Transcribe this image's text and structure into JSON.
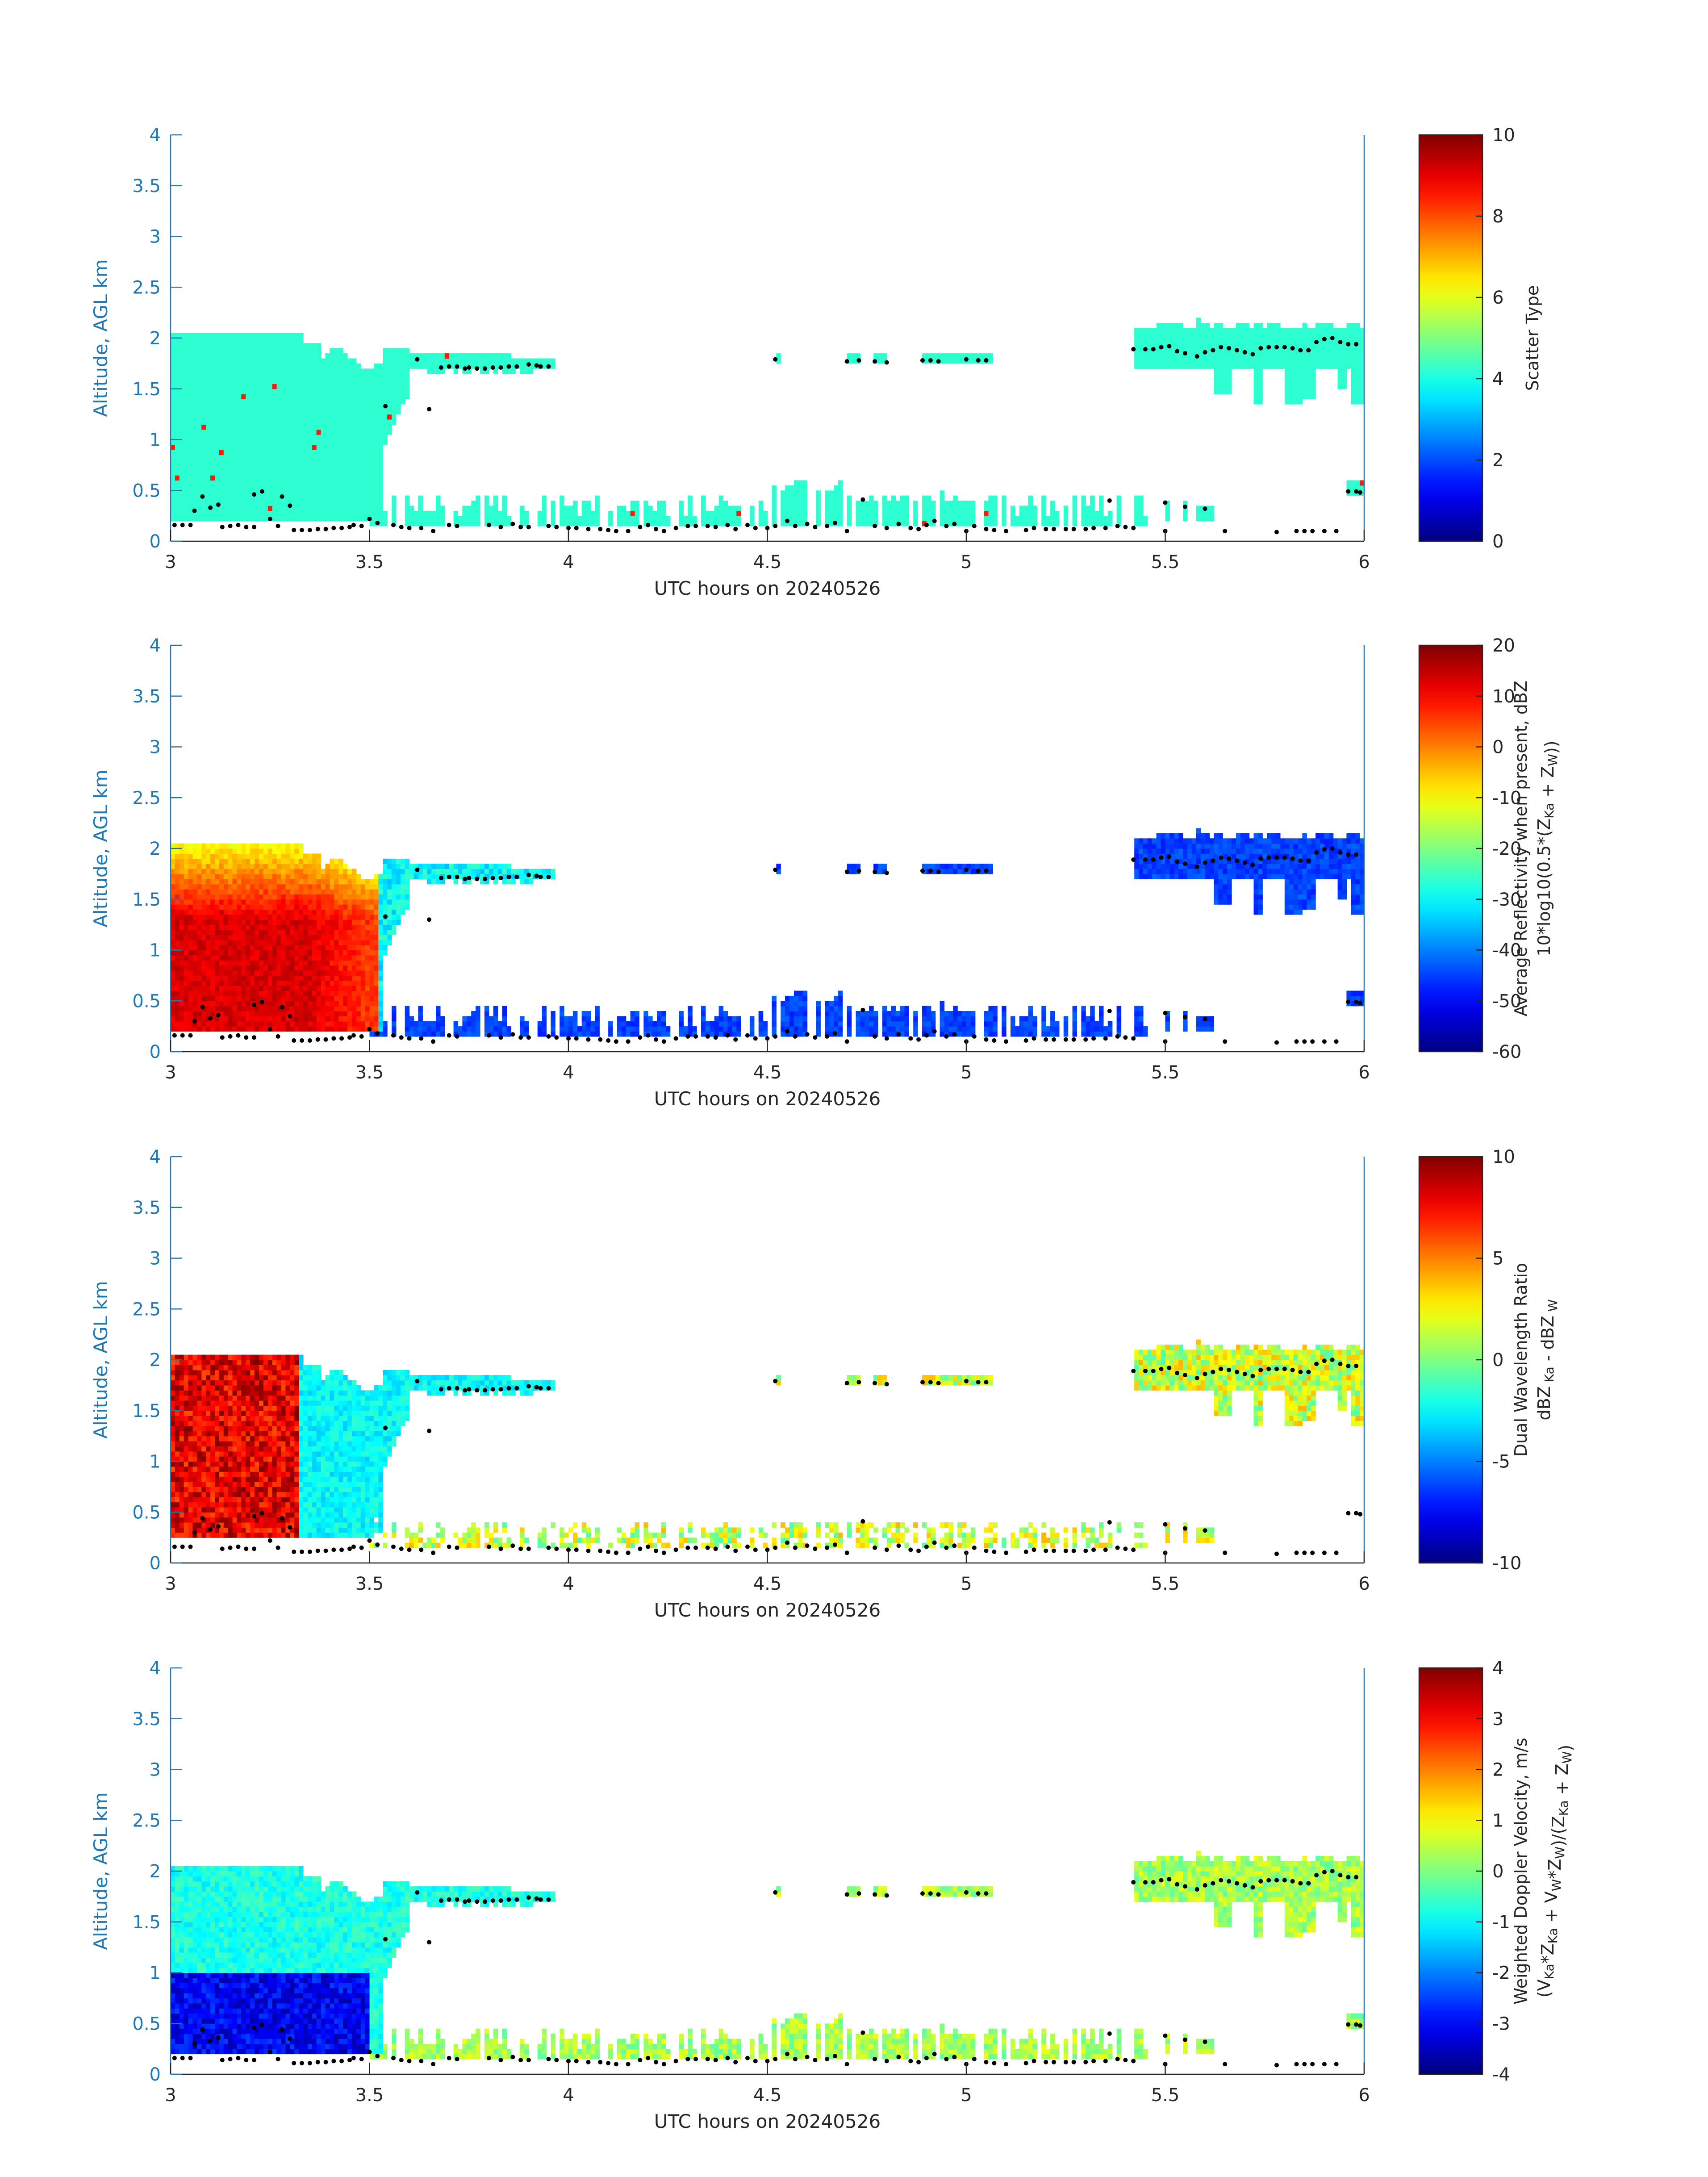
{
  "figure": {
    "colormap": "jet",
    "axis_color": "#1f77b4",
    "text_color": "#262626"
  },
  "chart_data": [
    {
      "type": "heatmap",
      "id": "scatter-type",
      "xlabel": "UTC hours on 20240526",
      "ylabel": "Altitude, AGL km",
      "xlim": [
        3,
        6
      ],
      "ylim": [
        0,
        4
      ],
      "xticks": [
        3,
        3.5,
        4,
        4.5,
        5,
        5.5,
        6
      ],
      "xticklabels": [
        "3",
        "3.5",
        "4",
        "4.5",
        "5",
        "5.5",
        "6"
      ],
      "yticks": [
        0,
        0.5,
        1,
        1.5,
        2,
        2.5,
        3,
        3.5,
        4
      ],
      "yticklabels": [
        "0",
        "0.5",
        "1",
        "1.5",
        "2",
        "2.5",
        "3",
        "3.5",
        "4"
      ],
      "colorbar": {
        "label_lines": [
          [
            {
              "t": "Scatter Type"
            }
          ]
        ],
        "clim": [
          0,
          10
        ],
        "ticks": [
          0,
          2,
          4,
          6,
          8,
          10
        ],
        "ticklabels": [
          "0",
          "2",
          "4",
          "6",
          "8",
          "10"
        ]
      },
      "field": "type",
      "field_note": "Mostly value ~4.2 (cyan) wherever echo is present; a few isolated cells ~8.5 (orange-red)."
    },
    {
      "type": "heatmap",
      "id": "reflectivity",
      "xlabel": "UTC hours on 20240526",
      "ylabel": "Altitude, AGL km",
      "xlim": [
        3,
        6
      ],
      "ylim": [
        0,
        4
      ],
      "xticks": [
        3,
        3.5,
        4,
        4.5,
        5,
        5.5,
        6
      ],
      "xticklabels": [
        "3",
        "3.5",
        "4",
        "4.5",
        "5",
        "5.5",
        "6"
      ],
      "yticks": [
        0,
        0.5,
        1,
        1.5,
        2,
        2.5,
        3,
        3.5,
        4
      ],
      "yticklabels": [
        "0",
        "0.5",
        "1",
        "1.5",
        "2",
        "2.5",
        "3",
        "3.5",
        "4"
      ],
      "colorbar": {
        "label_lines": [
          [
            {
              "t": "Average Reflectivity when present, dBZ"
            }
          ],
          [
            {
              "t": "10*log10(0.5*(Z"
            },
            {
              "t": "Ka",
              "sub": true
            },
            {
              "t": " + Z"
            },
            {
              "t": "W",
              "sub": true
            },
            {
              "t": "))"
            }
          ]
        ],
        "clim": [
          -60,
          20
        ],
        "ticks": [
          -60,
          -50,
          -40,
          -30,
          -20,
          -10,
          0,
          10,
          20
        ],
        "ticklabels": [
          "-60",
          "-50",
          "-40",
          "-30",
          "-20",
          "-10",
          "0",
          "10",
          "20"
        ]
      },
      "field": "refl",
      "field_note": "Strong echo (~5 to 15 dBZ) in 3.0-3.5 h below 2 km, weakening to ~-45 dBZ at edges; weak (~-50 dBZ) layers near surface and near 1.8 km after 5.4 h."
    },
    {
      "type": "heatmap",
      "id": "dwr",
      "xlabel": "UTC hours on 20240526",
      "ylabel": "Altitude, AGL km",
      "xlim": [
        3,
        6
      ],
      "ylim": [
        0,
        4
      ],
      "xticks": [
        3,
        3.5,
        4,
        4.5,
        5,
        5.5,
        6
      ],
      "xticklabels": [
        "3",
        "3.5",
        "4",
        "4.5",
        "5",
        "5.5",
        "6"
      ],
      "yticks": [
        0,
        0.5,
        1,
        1.5,
        2,
        2.5,
        3,
        3.5,
        4
      ],
      "yticklabels": [
        "0",
        "0.5",
        "1",
        "1.5",
        "2",
        "2.5",
        "3",
        "3.5",
        "4"
      ],
      "colorbar": {
        "label_lines": [
          [
            {
              "t": "Dual Wavelength Ratio"
            }
          ],
          [
            {
              "t": "dBZ"
            },
            {
              "t": " Ka",
              "sub": true
            },
            {
              "t": " - dBZ"
            },
            {
              "t": " W",
              "sub": true
            }
          ]
        ],
        "clim": [
          -10,
          10
        ],
        "ticks": [
          -10,
          -5,
          0,
          5,
          10
        ],
        "ticklabels": [
          "-10",
          "-5",
          "0",
          "5",
          "10"
        ]
      },
      "field": "dwr",
      "field_note": "Large DWR (~6 to 10) for 3.0-3.3 h, about -3 to -4 for 3.3-3.55 h, scattered ~0 to +3 cells in near-surface layer and upper layer."
    },
    {
      "type": "heatmap",
      "id": "doppler",
      "xlabel": "UTC hours on 20240526",
      "ylabel": "Altitude, AGL km",
      "xlim": [
        3,
        6
      ],
      "ylim": [
        0,
        4
      ],
      "xticks": [
        3,
        3.5,
        4,
        4.5,
        5,
        5.5,
        6
      ],
      "xticklabels": [
        "3",
        "3.5",
        "4",
        "4.5",
        "5",
        "5.5",
        "6"
      ],
      "yticks": [
        0,
        0.5,
        1,
        1.5,
        2,
        2.5,
        3,
        3.5,
        4
      ],
      "yticklabels": [
        "0",
        "0.5",
        "1",
        "1.5",
        "2",
        "2.5",
        "3",
        "3.5",
        "4"
      ],
      "colorbar": {
        "label_lines": [
          [
            {
              "t": "Weighted Doppler Velocity, m/s"
            }
          ],
          [
            {
              "t": "(V"
            },
            {
              "t": "Ka",
              "sub": true
            },
            {
              "t": "*Z"
            },
            {
              "t": "Ka",
              "sub": true
            },
            {
              "t": " + V"
            },
            {
              "t": "W",
              "sub": true
            },
            {
              "t": "*Z"
            },
            {
              "t": "W",
              "sub": true
            },
            {
              "t": ")/(Z"
            },
            {
              "t": "Ka",
              "sub": true
            },
            {
              "t": " + Z"
            },
            {
              "t": "W",
              "sub": true
            },
            {
              "t": ")"
            }
          ]
        ],
        "clim": [
          -4,
          4
        ],
        "ticks": [
          -4,
          -3,
          -2,
          -1,
          0,
          1,
          2,
          3,
          4
        ],
        "ticklabels": [
          "-4",
          "-3",
          "-2",
          "-1",
          "0",
          "1",
          "2",
          "3",
          "4"
        ]
      },
      "field": "vel",
      "field_note": "Downward ~-2 to -3.5 m/s below 1 km in 3.0-3.4 h, ~-1 m/s aloft; near-zero to slightly positive in near-surface layer and upper layer after 5.4 h."
    }
  ],
  "cloud_base_markers": {
    "note": "Black dots marking detected cloud base heights (km) vs UTC hour, identical in all panels.",
    "points": [
      [
        3.01,
        0.16
      ],
      [
        3.03,
        0.16
      ],
      [
        3.05,
        0.16
      ],
      [
        3.06,
        0.3
      ],
      [
        3.08,
        0.44
      ],
      [
        3.1,
        0.33
      ],
      [
        3.12,
        0.36
      ],
      [
        3.13,
        0.14
      ],
      [
        3.15,
        0.15
      ],
      [
        3.17,
        0.16
      ],
      [
        3.19,
        0.14
      ],
      [
        3.21,
        0.14
      ],
      [
        3.21,
        0.46
      ],
      [
        3.23,
        0.49
      ],
      [
        3.25,
        0.22
      ],
      [
        3.27,
        0.15
      ],
      [
        3.28,
        0.44
      ],
      [
        3.3,
        0.35
      ],
      [
        3.31,
        0.11
      ],
      [
        3.33,
        0.11
      ],
      [
        3.35,
        0.11
      ],
      [
        3.37,
        0.12
      ],
      [
        3.39,
        0.12
      ],
      [
        3.41,
        0.13
      ],
      [
        3.43,
        0.13
      ],
      [
        3.45,
        0.14
      ],
      [
        3.46,
        0.16
      ],
      [
        3.48,
        0.15
      ],
      [
        3.5,
        0.22
      ],
      [
        3.52,
        0.18
      ],
      [
        3.54,
        1.33
      ],
      [
        3.56,
        0.16
      ],
      [
        3.58,
        0.14
      ],
      [
        3.6,
        0.13
      ],
      [
        3.62,
        1.79
      ],
      [
        3.63,
        0.13
      ],
      [
        3.65,
        1.3
      ],
      [
        3.66,
        0.1
      ],
      [
        3.68,
        1.71
      ],
      [
        3.7,
        1.72
      ],
      [
        3.72,
        1.72
      ],
      [
        3.74,
        1.7
      ],
      [
        3.75,
        1.71
      ],
      [
        3.77,
        1.7
      ],
      [
        3.79,
        1.7
      ],
      [
        3.81,
        1.71
      ],
      [
        3.83,
        1.71
      ],
      [
        3.85,
        1.72
      ],
      [
        3.87,
        1.72
      ],
      [
        3.9,
        1.74
      ],
      [
        3.92,
        1.73
      ],
      [
        3.93,
        1.72
      ],
      [
        3.95,
        1.72
      ],
      [
        3.7,
        0.16
      ],
      [
        3.72,
        0.15
      ],
      [
        3.8,
        0.16
      ],
      [
        3.83,
        0.14
      ],
      [
        3.86,
        0.17
      ],
      [
        3.88,
        0.14
      ],
      [
        3.9,
        0.14
      ],
      [
        3.95,
        0.15
      ],
      [
        3.97,
        0.14
      ],
      [
        4.0,
        0.13
      ],
      [
        4.02,
        0.13
      ],
      [
        4.05,
        0.12
      ],
      [
        4.08,
        0.12
      ],
      [
        4.1,
        0.11
      ],
      [
        4.12,
        0.1
      ],
      [
        4.15,
        0.1
      ],
      [
        4.18,
        0.14
      ],
      [
        4.2,
        0.16
      ],
      [
        4.22,
        0.12
      ],
      [
        4.24,
        0.1
      ],
      [
        4.27,
        0.13
      ],
      [
        4.3,
        0.15
      ],
      [
        4.32,
        0.15
      ],
      [
        4.35,
        0.15
      ],
      [
        4.37,
        0.14
      ],
      [
        4.4,
        0.16
      ],
      [
        4.42,
        0.12
      ],
      [
        4.45,
        0.16
      ],
      [
        4.47,
        0.13
      ],
      [
        4.5,
        0.13
      ],
      [
        4.52,
        0.15
      ],
      [
        4.55,
        0.2
      ],
      [
        4.57,
        0.15
      ],
      [
        4.6,
        0.17
      ],
      [
        4.62,
        0.14
      ],
      [
        4.65,
        0.15
      ],
      [
        4.67,
        0.18
      ],
      [
        4.7,
        0.1
      ],
      [
        4.74,
        0.41
      ],
      [
        4.77,
        0.15
      ],
      [
        4.8,
        0.13
      ],
      [
        4.83,
        0.17
      ],
      [
        4.86,
        0.13
      ],
      [
        4.88,
        0.12
      ],
      [
        4.9,
        0.16
      ],
      [
        4.92,
        0.2
      ],
      [
        4.95,
        0.15
      ],
      [
        4.97,
        0.17
      ],
      [
        5.0,
        0.1
      ],
      [
        5.02,
        0.15
      ],
      [
        5.05,
        0.12
      ],
      [
        5.07,
        0.11
      ],
      [
        5.1,
        0.1
      ],
      [
        5.15,
        0.11
      ],
      [
        5.17,
        0.13
      ],
      [
        5.2,
        0.12
      ],
      [
        5.22,
        0.12
      ],
      [
        5.25,
        0.12
      ],
      [
        5.27,
        0.12
      ],
      [
        5.3,
        0.12
      ],
      [
        5.32,
        0.13
      ],
      [
        5.35,
        0.13
      ],
      [
        5.36,
        0.4
      ],
      [
        5.38,
        0.15
      ],
      [
        5.4,
        0.14
      ],
      [
        5.42,
        0.13
      ],
      [
        5.5,
        0.1
      ],
      [
        5.5,
        0.38
      ],
      [
        5.55,
        0.34
      ],
      [
        5.6,
        0.32
      ],
      [
        5.65,
        0.1
      ],
      [
        5.78,
        0.09
      ],
      [
        5.83,
        0.1
      ],
      [
        5.85,
        0.1
      ],
      [
        5.87,
        0.1
      ],
      [
        5.9,
        0.1
      ],
      [
        5.93,
        0.1
      ],
      [
        5.96,
        0.49
      ],
      [
        5.98,
        0.49
      ],
      [
        5.99,
        0.48
      ],
      [
        4.52,
        1.79
      ],
      [
        4.7,
        1.77
      ],
      [
        4.73,
        1.78
      ],
      [
        4.77,
        1.77
      ],
      [
        4.8,
        1.76
      ],
      [
        4.89,
        1.78
      ],
      [
        4.91,
        1.78
      ],
      [
        4.93,
        1.77
      ],
      [
        5.0,
        1.79
      ],
      [
        5.03,
        1.78
      ],
      [
        5.05,
        1.78
      ],
      [
        5.42,
        1.89
      ],
      [
        5.45,
        1.89
      ],
      [
        5.47,
        1.89
      ],
      [
        5.49,
        1.91
      ],
      [
        5.51,
        1.92
      ],
      [
        5.53,
        1.87
      ],
      [
        5.55,
        1.85
      ],
      [
        5.58,
        1.82
      ],
      [
        5.6,
        1.86
      ],
      [
        5.62,
        1.88
      ],
      [
        5.64,
        1.91
      ],
      [
        5.66,
        1.9
      ],
      [
        5.68,
        1.88
      ],
      [
        5.7,
        1.86
      ],
      [
        5.72,
        1.84
      ],
      [
        5.74,
        1.9
      ],
      [
        5.76,
        1.91
      ],
      [
        5.78,
        1.91
      ],
      [
        5.8,
        1.91
      ],
      [
        5.82,
        1.9
      ],
      [
        5.84,
        1.88
      ],
      [
        5.86,
        1.88
      ],
      [
        5.88,
        1.96
      ],
      [
        5.9,
        1.99
      ],
      [
        5.92,
        2.0
      ],
      [
        5.94,
        1.96
      ],
      [
        5.96,
        1.94
      ],
      [
        5.98,
        1.94
      ]
    ]
  }
}
